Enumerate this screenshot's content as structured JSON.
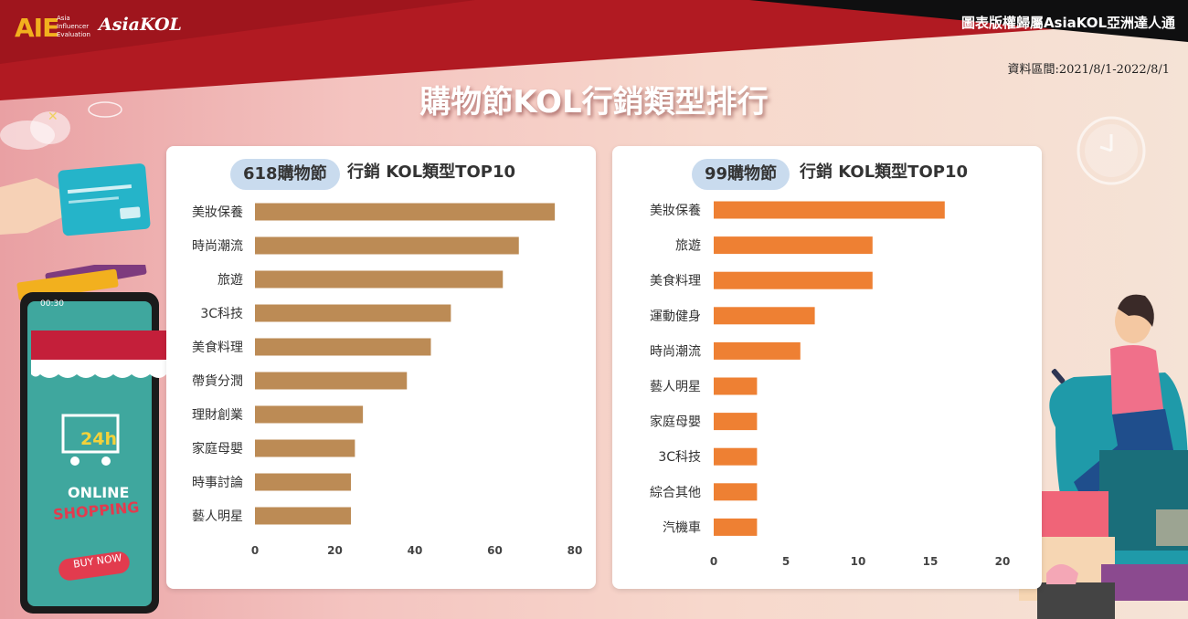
{
  "header": {
    "logo_aie": "AIE",
    "logo_aie_sub": [
      "Asia",
      "Influencer",
      "Evaluation"
    ],
    "logo_asiakol": "AsiaKOL",
    "copyright": "圖表版權歸屬AsiaKOL亞洲達人通",
    "date_range": "資料區間:2021/8/1-2022/8/1",
    "title": "購物節KOL行銷類型排行"
  },
  "illustration": {
    "phone_time": "00:30",
    "store_hours": "24h",
    "online": "ONLINE",
    "shopping": "SHOPPING",
    "buy_now": "BUY NOW"
  },
  "colors": {
    "left_bars": "#bc8b55",
    "right_bars": "#ee8033",
    "pill_bg": "#c9dbee",
    "top_band": "#b11a22"
  },
  "chart_data": [
    {
      "type": "bar",
      "orientation": "horizontal",
      "title_pill": "618購物節",
      "title_rest": "行銷 KOL類型TOP10",
      "categories": [
        "美妝保養",
        "時尚潮流",
        "旅遊",
        "3C科技",
        "美食料理",
        "帶貨分潤",
        "理財創業",
        "家庭母嬰",
        "時事討論",
        "藝人明星"
      ],
      "values": [
        75,
        66,
        62,
        49,
        44,
        38,
        27,
        25,
        24,
        24
      ],
      "xlim": [
        0,
        80
      ],
      "xticks": [
        "0",
        "20",
        "40",
        "60",
        "80"
      ],
      "grid": false,
      "legend": "none"
    },
    {
      "type": "bar",
      "orientation": "horizontal",
      "title_pill": "99購物節",
      "title_rest": "行銷 KOL類型TOP10",
      "categories": [
        "美妝保養",
        "旅遊",
        "美食料理",
        "運動健身",
        "時尚潮流",
        "藝人明星",
        "家庭母嬰",
        "3C科技",
        "綜合其他",
        "汽機車"
      ],
      "values": [
        16,
        11,
        11,
        7,
        6,
        3,
        3,
        3,
        3,
        3
      ],
      "xlim": [
        0,
        20
      ],
      "xticks": [
        "0",
        "5",
        "10",
        "15",
        "20"
      ],
      "grid": false,
      "legend": "none"
    }
  ]
}
